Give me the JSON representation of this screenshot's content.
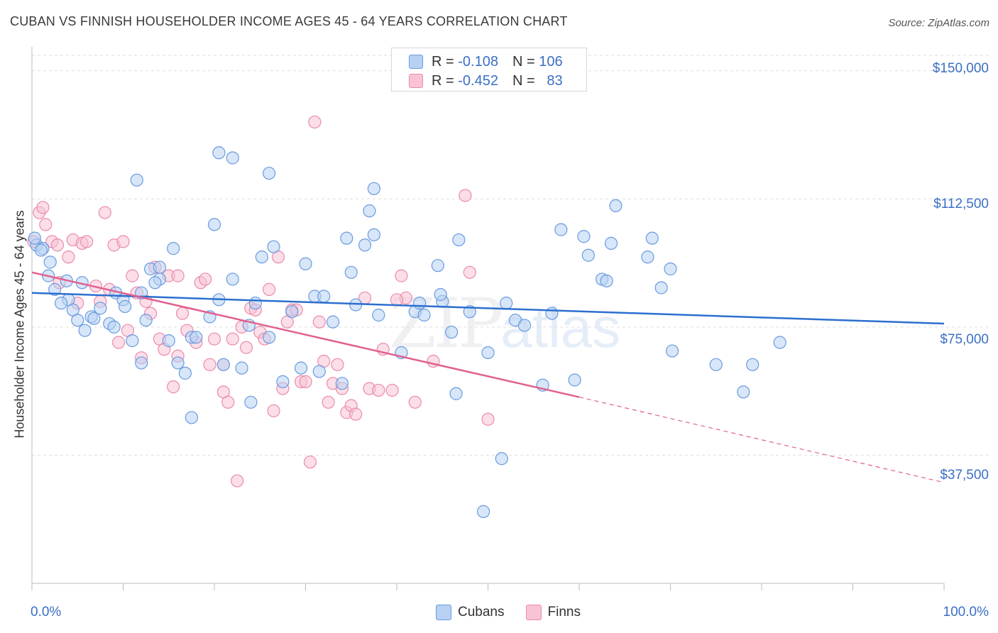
{
  "header": {
    "title": "CUBAN VS FINNISH HOUSEHOLDER INCOME AGES 45 - 64 YEARS CORRELATION CHART",
    "source": "Source: ZipAtlas.com"
  },
  "legend": {
    "rows": [
      {
        "r_label": "R =",
        "r_value": "-0.108",
        "n_label": "N =",
        "n_value": "106"
      },
      {
        "r_label": "R =",
        "r_value": "-0.452",
        "n_label": "N =",
        "n_value": "83"
      }
    ],
    "series_names": [
      "Cubans",
      "Finns"
    ]
  },
  "watermark": {
    "part1": "ZIP",
    "part2": "atlas"
  },
  "colors": {
    "cubans_fill": "#b7d1f3",
    "cubans_stroke": "#6a9be0",
    "cubans_line": "#2c6fcf",
    "finns_fill": "#f8c3d5",
    "finns_stroke": "#eb8aaa",
    "finns_line": "#e0608f",
    "grid": "#dddddd",
    "axis_label": "#3b6fc6"
  },
  "chart_data": {
    "type": "scatter",
    "title": "CUBAN VS FINNISH HOUSEHOLDER INCOME AGES 45 - 64 YEARS CORRELATION CHART",
    "xlabel": "",
    "ylabel": "Householder Income Ages 45 - 64 years",
    "xlim": [
      0,
      100
    ],
    "ylim": [
      0,
      157000
    ],
    "x_tick_labels": [
      "0.0%",
      "100.0%"
    ],
    "y_ticks": [
      37500,
      75000,
      112500,
      150000
    ],
    "y_tick_labels": [
      "$37,500",
      "$75,000",
      "$112,500",
      "$150,000"
    ],
    "grid": true,
    "series": [
      {
        "name": "Cubans",
        "r": -0.108,
        "n": 106,
        "trend": {
          "x": [
            0,
            100
          ],
          "y": [
            85000,
            76000
          ]
        },
        "points": [
          [
            0.5,
            99000
          ],
          [
            1.2,
            98000
          ],
          [
            2.0,
            94000
          ],
          [
            1.8,
            90000
          ],
          [
            3.8,
            88500
          ],
          [
            4.0,
            83000
          ],
          [
            4.5,
            80000
          ],
          [
            5.5,
            88000
          ],
          [
            3.2,
            82000
          ],
          [
            5.0,
            77000
          ],
          [
            6.5,
            78000
          ],
          [
            7.5,
            80500
          ],
          [
            6.8,
            77500
          ],
          [
            8.5,
            76000
          ],
          [
            9.0,
            75000
          ],
          [
            9.2,
            85000
          ],
          [
            10.0,
            83000
          ],
          [
            10.2,
            81000
          ],
          [
            11.0,
            71000
          ],
          [
            12.0,
            85000
          ],
          [
            12.5,
            77000
          ],
          [
            13.0,
            92000
          ],
          [
            14.0,
            89000
          ],
          [
            15.0,
            71000
          ],
          [
            15.5,
            98000
          ],
          [
            16.0,
            64500
          ],
          [
            16.8,
            61500
          ],
          [
            17.5,
            72000
          ],
          [
            18.0,
            72000
          ],
          [
            19.5,
            78000
          ],
          [
            20.0,
            105000
          ],
          [
            20.5,
            83000
          ],
          [
            21.0,
            64000
          ],
          [
            22.0,
            89000
          ],
          [
            23.0,
            63000
          ],
          [
            24.0,
            53000
          ],
          [
            23.8,
            75500
          ],
          [
            24.5,
            82000
          ],
          [
            25.2,
            95500
          ],
          [
            26.0,
            72000
          ],
          [
            26.5,
            98500
          ],
          [
            27.5,
            59000
          ],
          [
            28.5,
            79500
          ],
          [
            29.5,
            63000
          ],
          [
            30.0,
            93500
          ],
          [
            31.0,
            84000
          ],
          [
            31.5,
            62000
          ],
          [
            32.0,
            84000
          ],
          [
            33.0,
            76500
          ],
          [
            34.0,
            58500
          ],
          [
            34.5,
            101000
          ],
          [
            35.0,
            91000
          ],
          [
            35.5,
            81500
          ],
          [
            36.5,
            99000
          ],
          [
            37.5,
            102000
          ],
          [
            38.0,
            78500
          ],
          [
            40.5,
            67500
          ],
          [
            42.0,
            79500
          ],
          [
            43.0,
            78500
          ],
          [
            44.5,
            93000
          ],
          [
            45.0,
            82500
          ],
          [
            44.8,
            84500
          ],
          [
            46.0,
            73500
          ],
          [
            46.5,
            55500
          ],
          [
            46.8,
            100500
          ],
          [
            48.0,
            79500
          ],
          [
            50.0,
            67500
          ],
          [
            51.5,
            36500
          ],
          [
            52.0,
            82000
          ],
          [
            53.0,
            77000
          ],
          [
            54.0,
            75500
          ],
          [
            56.0,
            58000
          ],
          [
            57.0,
            79000
          ],
          [
            58.0,
            103500
          ],
          [
            59.5,
            59500
          ],
          [
            60.5,
            101500
          ],
          [
            61.0,
            96000
          ],
          [
            62.5,
            89000
          ],
          [
            63.0,
            88500
          ],
          [
            63.5,
            99500
          ],
          [
            64.0,
            110500
          ],
          [
            67.5,
            95500
          ],
          [
            68.0,
            101000
          ],
          [
            69.0,
            86500
          ],
          [
            70.0,
            92000
          ],
          [
            70.2,
            68000
          ],
          [
            75.0,
            64000
          ],
          [
            78.0,
            56000
          ],
          [
            79.0,
            64000
          ],
          [
            82.0,
            70500
          ],
          [
            0.3,
            101000
          ],
          [
            14.0,
            92500
          ],
          [
            13.5,
            88000
          ],
          [
            12.0,
            64500
          ],
          [
            5.8,
            74000
          ],
          [
            2.5,
            86000
          ],
          [
            11.5,
            118000
          ],
          [
            17.5,
            48500
          ],
          [
            20.5,
            126000
          ],
          [
            22.0,
            124500
          ],
          [
            26.0,
            120000
          ],
          [
            37.5,
            115500
          ],
          [
            37.0,
            109000
          ],
          [
            42.5,
            82000
          ],
          [
            49.5,
            21000
          ],
          [
            1.0,
            97500
          ]
        ]
      },
      {
        "name": "Finns",
        "r": -0.452,
        "n": 83,
        "trend": {
          "x": [
            0,
            60
          ],
          "y": [
            91000,
            54500
          ]
        },
        "trend_dashed": {
          "x": [
            60,
            100
          ],
          "y": [
            54500,
            29500
          ]
        },
        "points": [
          [
            0.2,
            100000
          ],
          [
            0.8,
            108500
          ],
          [
            1.2,
            110000
          ],
          [
            1.5,
            105000
          ],
          [
            2.2,
            100000
          ],
          [
            2.8,
            99000
          ],
          [
            3.0,
            88000
          ],
          [
            4.0,
            95500
          ],
          [
            4.5,
            100500
          ],
          [
            5.0,
            82000
          ],
          [
            5.5,
            99500
          ],
          [
            6.0,
            100000
          ],
          [
            7.0,
            87000
          ],
          [
            7.5,
            82500
          ],
          [
            8.0,
            108500
          ],
          [
            8.5,
            86000
          ],
          [
            9.0,
            99000
          ],
          [
            9.5,
            70500
          ],
          [
            10.0,
            100000
          ],
          [
            10.5,
            74000
          ],
          [
            11.0,
            90000
          ],
          [
            11.5,
            85000
          ],
          [
            12.0,
            66000
          ],
          [
            12.5,
            82500
          ],
          [
            13.0,
            79000
          ],
          [
            13.5,
            92500
          ],
          [
            14.0,
            71500
          ],
          [
            14.5,
            68500
          ],
          [
            15.0,
            90000
          ],
          [
            15.5,
            57500
          ],
          [
            16.0,
            66500
          ],
          [
            16.5,
            79000
          ],
          [
            17.0,
            74000
          ],
          [
            18.0,
            70500
          ],
          [
            18.5,
            88000
          ],
          [
            19.5,
            64000
          ],
          [
            20.0,
            71500
          ],
          [
            21.0,
            56000
          ],
          [
            21.5,
            53000
          ],
          [
            22.0,
            71500
          ],
          [
            22.5,
            30000
          ],
          [
            23.0,
            75000
          ],
          [
            23.5,
            69000
          ],
          [
            24.0,
            80500
          ],
          [
            24.5,
            80000
          ],
          [
            25.0,
            73500
          ],
          [
            25.5,
            71500
          ],
          [
            26.0,
            86000
          ],
          [
            26.5,
            50500
          ],
          [
            27.0,
            95500
          ],
          [
            27.5,
            57000
          ],
          [
            28.5,
            80000
          ],
          [
            29.0,
            80000
          ],
          [
            29.5,
            59000
          ],
          [
            30.0,
            59000
          ],
          [
            30.5,
            35500
          ],
          [
            31.5,
            76500
          ],
          [
            32.0,
            65000
          ],
          [
            32.5,
            53000
          ],
          [
            33.0,
            58500
          ],
          [
            34.0,
            57000
          ],
          [
            34.5,
            50000
          ],
          [
            35.0,
            52000
          ],
          [
            35.5,
            49500
          ],
          [
            36.5,
            83500
          ],
          [
            37.0,
            57000
          ],
          [
            38.0,
            56500
          ],
          [
            38.5,
            68500
          ],
          [
            39.5,
            56500
          ],
          [
            40.5,
            90000
          ],
          [
            41.0,
            83500
          ],
          [
            42.0,
            53000
          ],
          [
            44.0,
            65000
          ],
          [
            47.5,
            113500
          ],
          [
            48.0,
            91000
          ],
          [
            50.0,
            48000
          ],
          [
            31.0,
            135000
          ],
          [
            19.0,
            89000
          ],
          [
            16.0,
            90000
          ],
          [
            28.0,
            76500
          ],
          [
            40.0,
            83000
          ],
          [
            33.5,
            64000
          ],
          [
            21.0,
            64000
          ]
        ]
      }
    ]
  }
}
